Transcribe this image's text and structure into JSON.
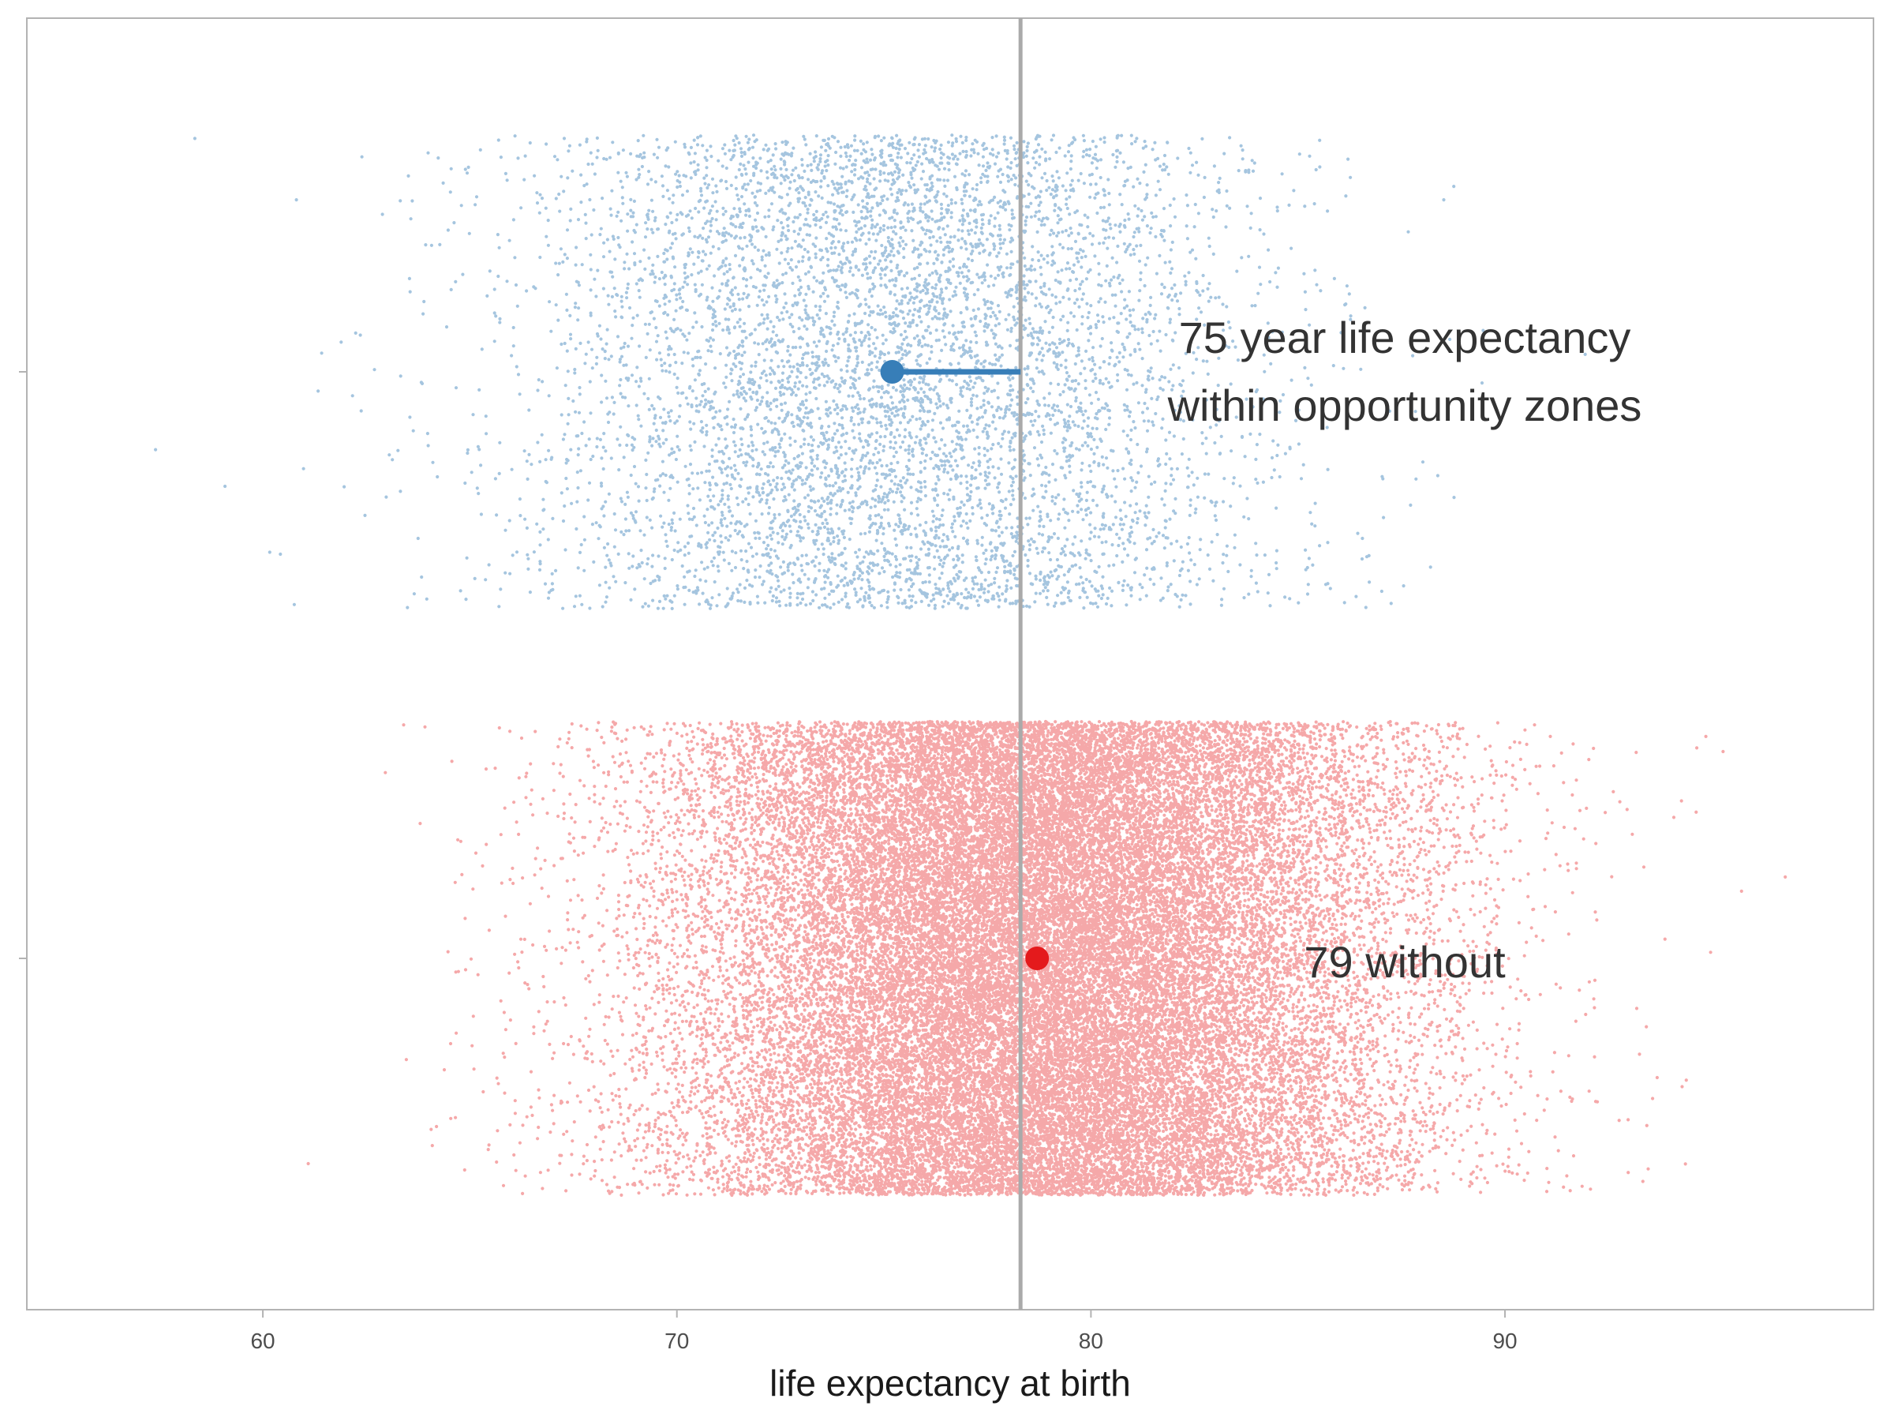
{
  "chart_data": {
    "type": "scatter",
    "title": "",
    "xlabel": "life expectancy at birth",
    "ylabel": "",
    "xlim": [
      54.3,
      98.9
    ],
    "xticks": [
      60,
      70,
      80,
      90
    ],
    "grid": false,
    "legend": "none",
    "reference_line": {
      "x": 78.3,
      "color": "#aaaaaa"
    },
    "series": [
      {
        "color": "#377eb8",
        "mean": 75.2,
        "point_count_approx": 7000,
        "x_range": [
          56.2,
          92.3
        ],
        "x_sd_approx": 4.3,
        "annotation": [
          "75 year life expectancy",
          "within opportunity zones"
        ]
      },
      {
        "color": "#e41a1c",
        "mean": 78.7,
        "point_count_approx": 40000,
        "x_range": [
          56.8,
          97.5
        ],
        "x_sd_approx": 4.3,
        "annotation": [
          "79 without"
        ]
      }
    ]
  }
}
